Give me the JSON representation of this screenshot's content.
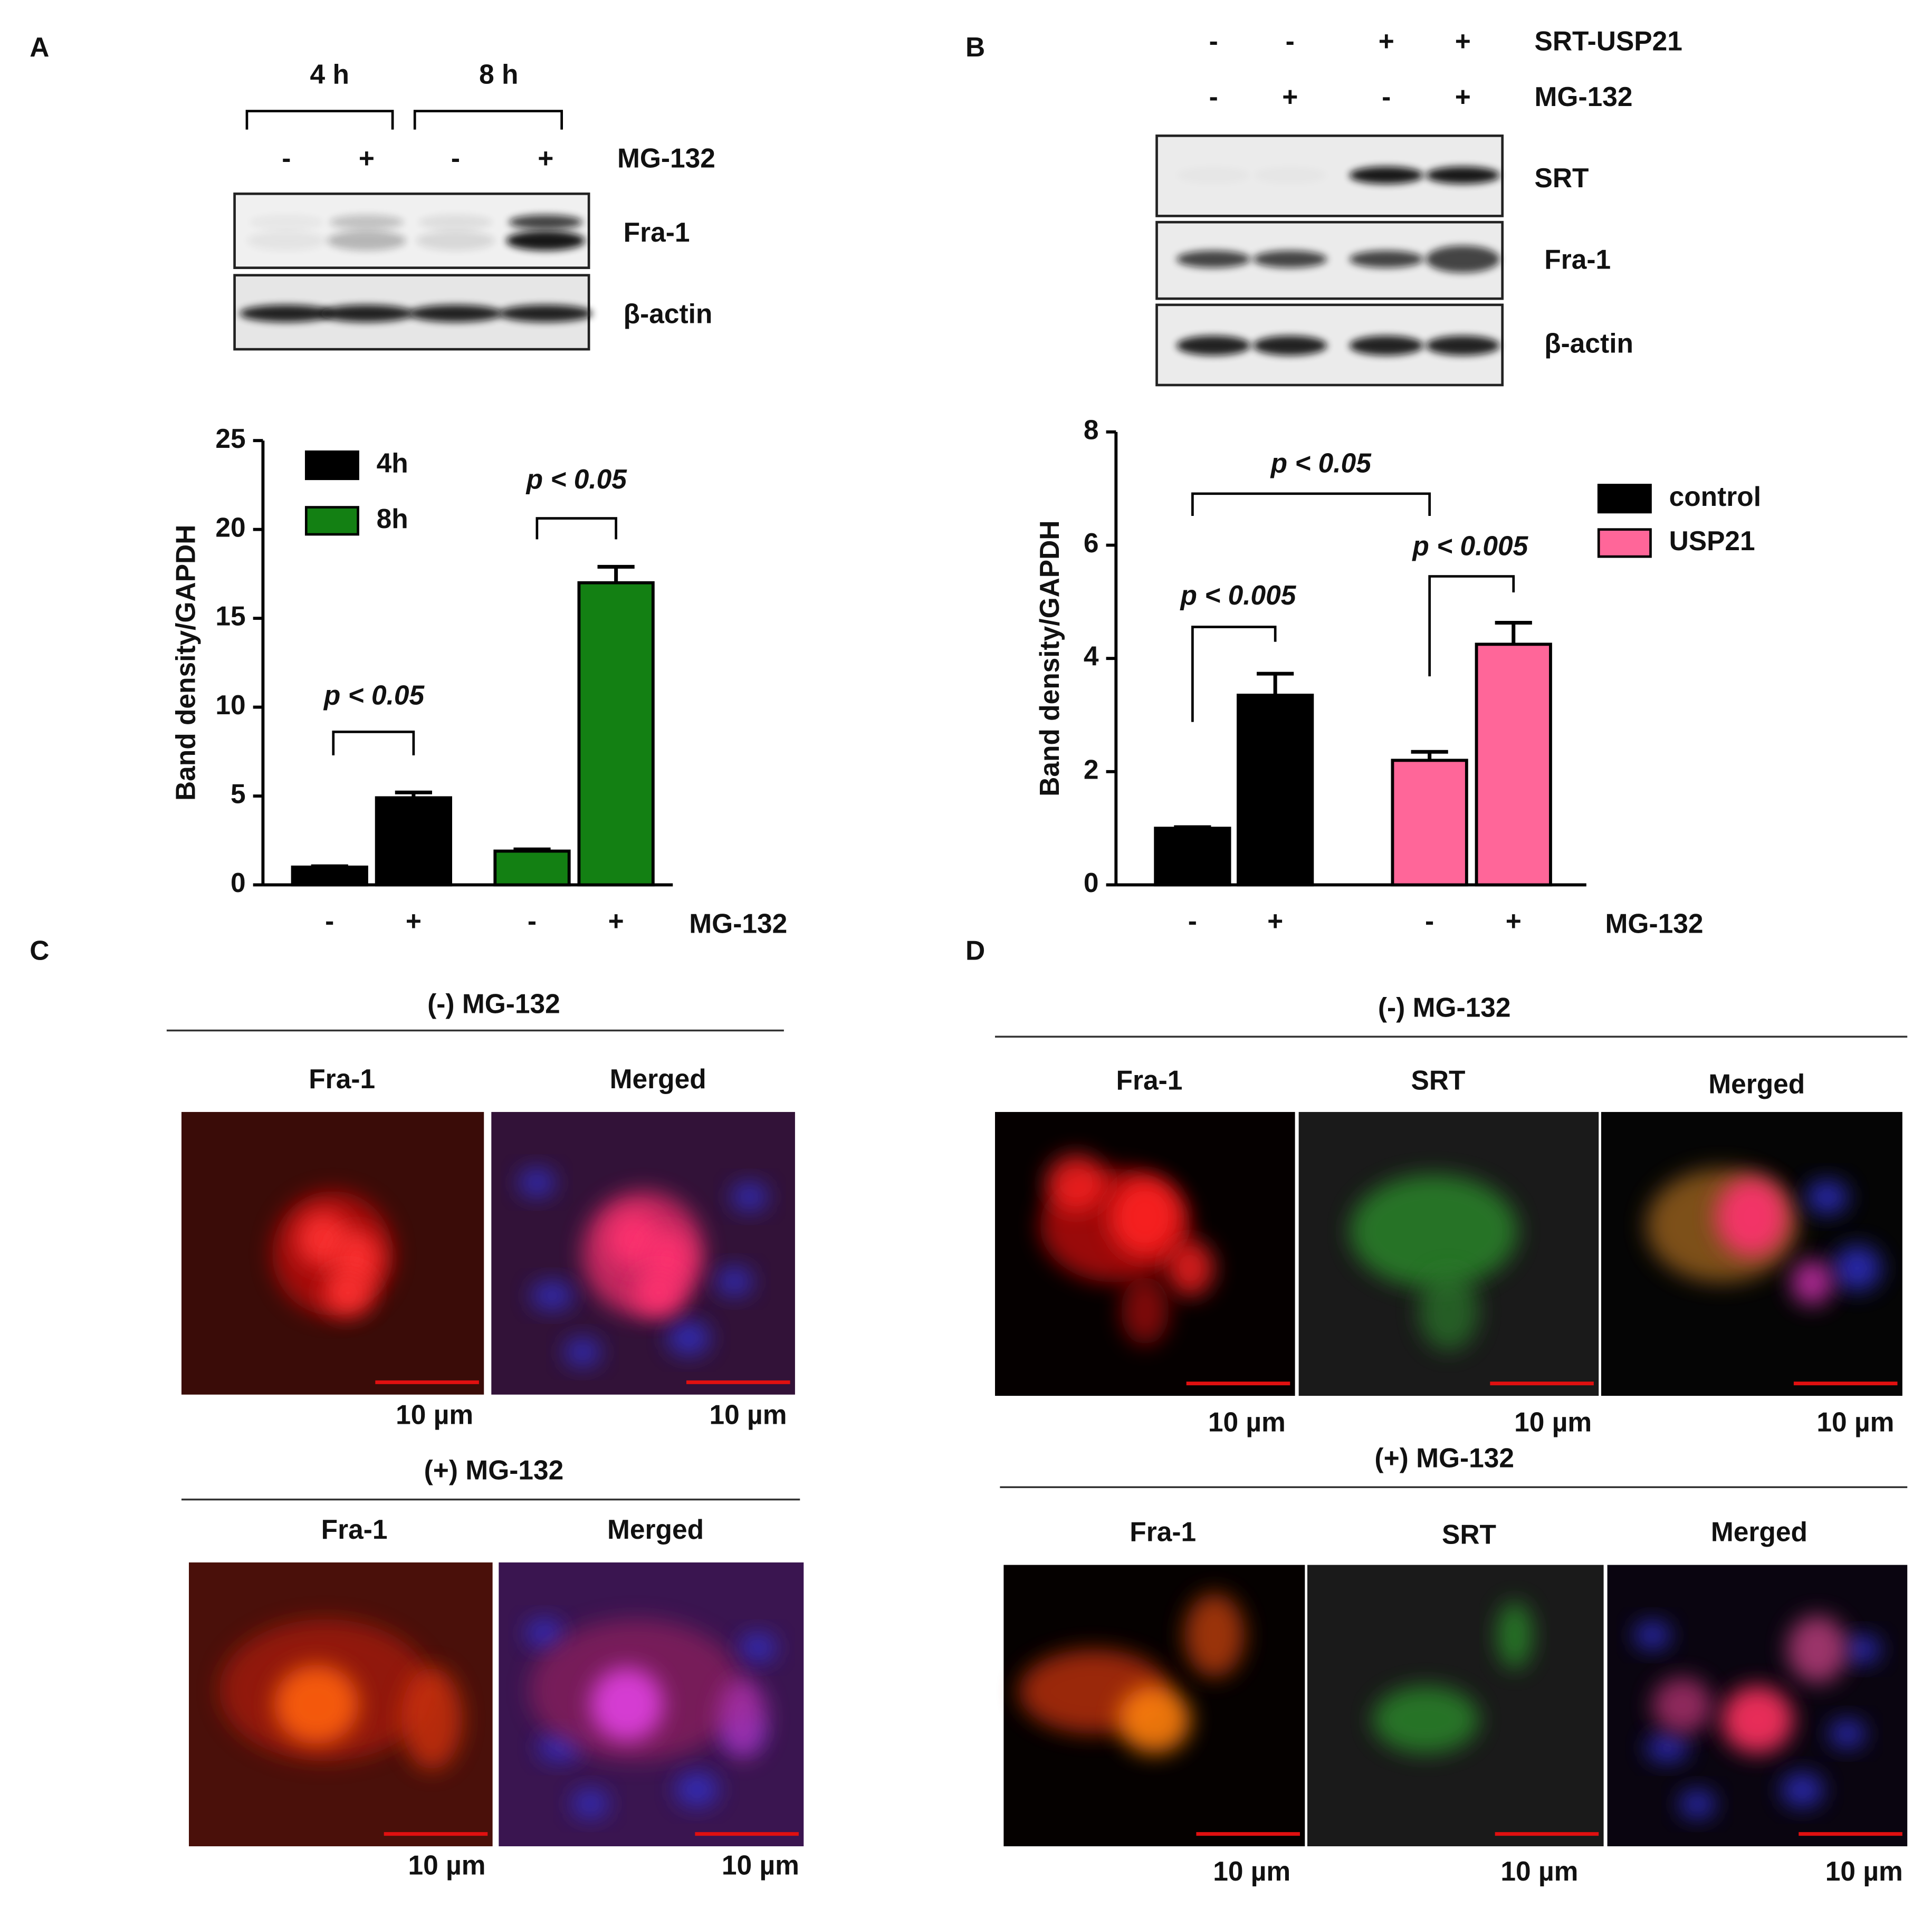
{
  "panel_labels": [
    "A",
    "B",
    "C",
    "D"
  ],
  "blot_a": {
    "time_labels": [
      "4 h",
      "8 h"
    ],
    "treatment_signs": [
      "-",
      "+",
      "-",
      "+"
    ],
    "treatment_label": "MG-132",
    "bands": [
      "Fra-1",
      "β-actin"
    ]
  },
  "blot_b": {
    "rows": [
      {
        "label": "SRT-USP21",
        "signs": [
          "-",
          "-",
          "+",
          "+"
        ]
      },
      {
        "label": "MG-132",
        "signs": [
          "-",
          "+",
          "-",
          "+"
        ]
      }
    ],
    "bands": [
      "SRT",
      "Fra-1",
      "β-actin"
    ]
  },
  "chart_data": [
    {
      "type": "bar",
      "y_label": "Band density/GAPDH",
      "x_label": "MG-132",
      "categories": [
        "-",
        "+",
        "-",
        "+"
      ],
      "series": [
        {
          "name": "4h",
          "color": "#000000",
          "values": [
            1.0,
            4.9,
            null,
            null
          ],
          "errors": [
            0.05,
            0.3,
            null,
            null
          ]
        },
        {
          "name": "8h",
          "color": "#138013",
          "values": [
            null,
            null,
            1.9,
            17.0
          ],
          "errors": [
            null,
            null,
            0.1,
            0.9
          ]
        }
      ],
      "annotations": [
        "p < 0.05",
        "p < 0.05"
      ],
      "ylim": [
        0,
        25
      ],
      "yticks": [
        0,
        5,
        10,
        15,
        20,
        25
      ],
      "legend": "upper left"
    },
    {
      "type": "bar",
      "y_label": "Band density/GAPDH",
      "x_label": "MG-132",
      "categories": [
        "-",
        "+",
        "-",
        "+"
      ],
      "series": [
        {
          "name": "control",
          "color": "#000000",
          "values": [
            1.0,
            3.35,
            null,
            null
          ],
          "errors": [
            0.02,
            0.38,
            null,
            null
          ]
        },
        {
          "name": "USP21",
          "color": "#ff6699",
          "values": [
            null,
            null,
            2.2,
            4.25
          ],
          "errors": [
            null,
            null,
            0.15,
            0.38
          ]
        }
      ],
      "annotations": [
        "p < 0.05",
        "p < 0.005",
        "p < 0.005"
      ],
      "ylim": [
        0,
        8
      ],
      "yticks": [
        0,
        2,
        4,
        6,
        8
      ],
      "legend": "upper right"
    }
  ],
  "micro_c": {
    "groups": [
      {
        "title": "(-) MG-132",
        "columns": [
          "Fra-1",
          "Merged"
        ],
        "scale_labels": [
          "10 µm",
          "10 µm"
        ]
      },
      {
        "title": "(+) MG-132",
        "columns": [
          "Fra-1",
          "Merged"
        ],
        "scale_labels": [
          "10 µm",
          "10 µm"
        ]
      }
    ]
  },
  "micro_d": {
    "groups": [
      {
        "title": "(-) MG-132",
        "columns": [
          "Fra-1",
          "SRT",
          "Merged"
        ],
        "scale_labels": [
          "10 µm",
          "10 µm",
          "10 µm"
        ]
      },
      {
        "title": "(+) MG-132",
        "columns": [
          "Fra-1",
          "SRT",
          "Merged"
        ],
        "scale_labels": [
          "10 µm",
          "10 µm",
          "10 µm"
        ]
      }
    ]
  }
}
